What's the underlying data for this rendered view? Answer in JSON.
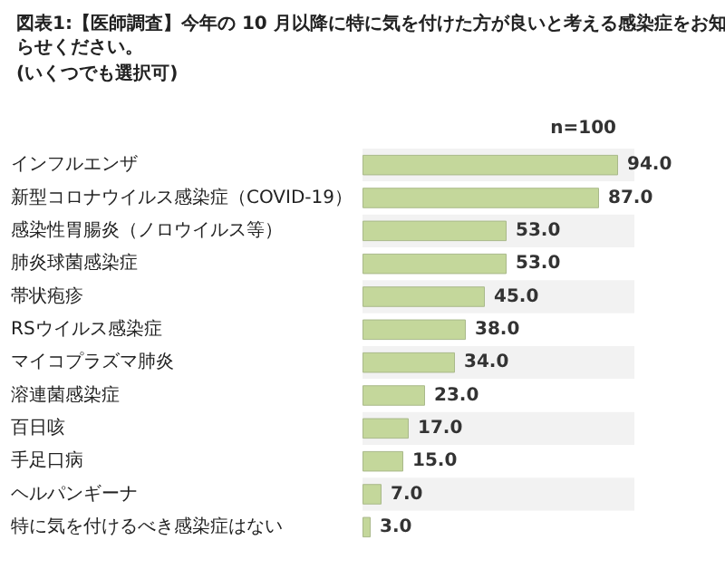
{
  "chart_data": {
    "type": "bar",
    "orientation": "horizontal",
    "title": "図表1:【医師調査】今年の 10 月以降に特に気を付けた方が良いと考える感染症をお知らせください。",
    "subtitle": "(いくつでも選択可)",
    "annotations": [
      "n=100"
    ],
    "categories": [
      "インフルエンザ",
      "新型コロナウイルス感染症（COVID-19）",
      "感染性胃腸炎（ノロウイルス等）",
      "肺炎球菌感染症",
      "帯状疱疹",
      "RSウイルス感染症",
      "マイコプラズマ肺炎",
      "溶連菌感染症",
      "百日咳",
      "手足口病",
      "ヘルパンギーナ",
      "特に気を付けるべき感染症はない"
    ],
    "values": [
      94,
      87,
      53,
      53,
      45,
      38,
      34,
      23,
      17,
      15,
      7,
      3
    ],
    "value_labels": [
      "94.0",
      "87.0",
      "53.0",
      "53.0",
      "45.0",
      "38.0",
      "34.0",
      "23.0",
      "17.0",
      "15.0",
      "7.0",
      "3.0"
    ],
    "color": "#c4d79b"
  }
}
